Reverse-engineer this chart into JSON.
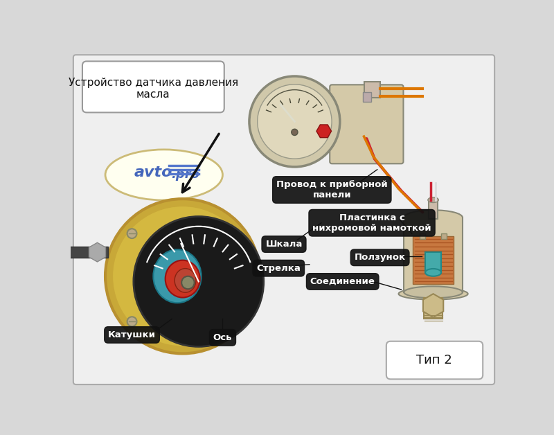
{
  "bg_color": "#d8d8d8",
  "inner_bg": "#ececec",
  "title_text": "Устройство датчика давления\nмасла",
  "tip2_text": "Тип 2",
  "label_провод": "Провод к приборной\nпанели",
  "label_шкала": "Шкала",
  "label_стрелка": "Стрелка",
  "label_катушки": "Катушки",
  "label_ось": "Ось",
  "label_пластинка": "Пластинка с\nнихромовой намоткой",
  "label_ползунок": "Ползунок",
  "label_соединение": "Соединение",
  "dark_label_bg": "#111111",
  "dark_label_fg": "#ffffff",
  "beige": "#d4c9a8",
  "beige_dark": "#b8a87a",
  "brass": "#c8a83a",
  "brass_light": "#d4b84a"
}
